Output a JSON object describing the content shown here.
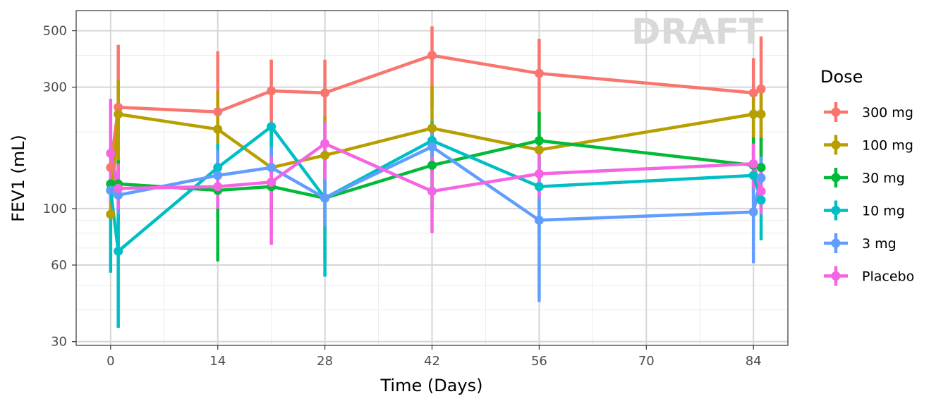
{
  "chart_data": {
    "type": "line",
    "xlabel": "Time (Days)",
    "ylabel": "FEV1 (mL)",
    "x_ticks": [
      0,
      14,
      28,
      42,
      56,
      70,
      84
    ],
    "y_ticks": [
      30,
      60,
      100,
      300,
      500
    ],
    "y_scale": "log",
    "xlim": [
      -4.5,
      88.5
    ],
    "ylim": [
      29,
      600
    ],
    "grid": true,
    "watermark": "DRAFT",
    "legend": {
      "title": "Dose",
      "position": "right"
    },
    "series": [
      {
        "name": "300 mg",
        "color": "#F8766D",
        "points": [
          {
            "x": 0,
            "y": 145,
            "lo": 93,
            "hi": 205
          },
          {
            "x": 1,
            "y": 250,
            "lo": 140,
            "hi": 440
          },
          {
            "x": 14,
            "y": 240,
            "lo": 140,
            "hi": 415
          },
          {
            "x": 21,
            "y": 290,
            "lo": 180,
            "hi": 385
          },
          {
            "x": 28,
            "y": 285,
            "lo": 175,
            "hi": 385
          },
          {
            "x": 42,
            "y": 400,
            "lo": 250,
            "hi": 520
          },
          {
            "x": 56,
            "y": 340,
            "lo": 200,
            "hi": 465
          },
          {
            "x": 84,
            "y": 285,
            "lo": 170,
            "hi": 390
          },
          {
            "x": 85,
            "y": 295,
            "lo": 150,
            "hi": 475
          }
        ]
      },
      {
        "name": "100 mg",
        "color": "#B79F00",
        "points": [
          {
            "x": 0,
            "y": 95,
            "lo": 63,
            "hi": 130
          },
          {
            "x": 1,
            "y": 235,
            "lo": 110,
            "hi": 320
          },
          {
            "x": 14,
            "y": 205,
            "lo": 115,
            "hi": 290
          },
          {
            "x": 21,
            "y": 145,
            "lo": 90,
            "hi": 210
          },
          {
            "x": 28,
            "y": 162,
            "lo": 110,
            "hi": 230
          },
          {
            "x": 42,
            "y": 207,
            "lo": 140,
            "hi": 305
          },
          {
            "x": 56,
            "y": 170,
            "lo": 120,
            "hi": 240
          },
          {
            "x": 84,
            "y": 235,
            "lo": 160,
            "hi": 285
          },
          {
            "x": 85,
            "y": 235,
            "lo": 170,
            "hi": 300
          }
        ]
      },
      {
        "name": "30 mg",
        "color": "#00BA38",
        "points": [
          {
            "x": 0,
            "y": 125,
            "lo": 85,
            "hi": 165
          },
          {
            "x": 1,
            "y": 125,
            "lo": 87,
            "hi": 155
          },
          {
            "x": 14,
            "y": 118,
            "lo": 62,
            "hi": 165
          },
          {
            "x": 21,
            "y": 122,
            "lo": 95,
            "hi": 155
          },
          {
            "x": 28,
            "y": 110,
            "lo": 62,
            "hi": 150
          },
          {
            "x": 42,
            "y": 148,
            "lo": 100,
            "hi": 200
          },
          {
            "x": 56,
            "y": 185,
            "lo": 130,
            "hi": 240
          },
          {
            "x": 84,
            "y": 148,
            "lo": 110,
            "hi": 190
          },
          {
            "x": 85,
            "y": 145,
            "lo": 105,
            "hi": 190
          }
        ]
      },
      {
        "name": "10 mg",
        "color": "#00BFC4",
        "points": [
          {
            "x": 0,
            "y": 118,
            "lo": 56,
            "hi": 250
          },
          {
            "x": 1,
            "y": 68,
            "lo": 34,
            "hi": 130
          },
          {
            "x": 14,
            "y": 145,
            "lo": 100,
            "hi": 180
          },
          {
            "x": 21,
            "y": 210,
            "lo": 150,
            "hi": 215
          },
          {
            "x": 28,
            "y": 110,
            "lo": 54,
            "hi": 160
          },
          {
            "x": 42,
            "y": 185,
            "lo": 140,
            "hi": 220
          },
          {
            "x": 56,
            "y": 122,
            "lo": 75,
            "hi": 160
          },
          {
            "x": 84,
            "y": 135,
            "lo": 100,
            "hi": 175
          },
          {
            "x": 85,
            "y": 108,
            "lo": 75,
            "hi": 160
          }
        ]
      },
      {
        "name": "3 mg",
        "color": "#619CFF",
        "points": [
          {
            "x": 0,
            "y": 118,
            "lo": 95,
            "hi": 150
          },
          {
            "x": 1,
            "y": 113,
            "lo": 95,
            "hi": 145
          },
          {
            "x": 14,
            "y": 135,
            "lo": 100,
            "hi": 170
          },
          {
            "x": 21,
            "y": 145,
            "lo": 115,
            "hi": 175
          },
          {
            "x": 28,
            "y": 110,
            "lo": 85,
            "hi": 140
          },
          {
            "x": 42,
            "y": 175,
            "lo": 130,
            "hi": 215
          },
          {
            "x": 56,
            "y": 90,
            "lo": 43,
            "hi": 130
          },
          {
            "x": 84,
            "y": 97,
            "lo": 61,
            "hi": 130
          },
          {
            "x": 85,
            "y": 132,
            "lo": 100,
            "hi": 160
          }
        ]
      },
      {
        "name": "Placebo",
        "color": "#F564E3",
        "points": [
          {
            "x": 0,
            "y": 165,
            "lo": 95,
            "hi": 270
          },
          {
            "x": 1,
            "y": 120,
            "lo": 100,
            "hi": 150
          },
          {
            "x": 14,
            "y": 122,
            "lo": 100,
            "hi": 150
          },
          {
            "x": 21,
            "y": 127,
            "lo": 72,
            "hi": 160
          },
          {
            "x": 28,
            "y": 180,
            "lo": 130,
            "hi": 220
          },
          {
            "x": 42,
            "y": 117,
            "lo": 80,
            "hi": 160
          },
          {
            "x": 56,
            "y": 137,
            "lo": 110,
            "hi": 165
          },
          {
            "x": 84,
            "y": 150,
            "lo": 120,
            "hi": 180
          },
          {
            "x": 85,
            "y": 117,
            "lo": 95,
            "hi": 140
          }
        ]
      }
    ]
  }
}
